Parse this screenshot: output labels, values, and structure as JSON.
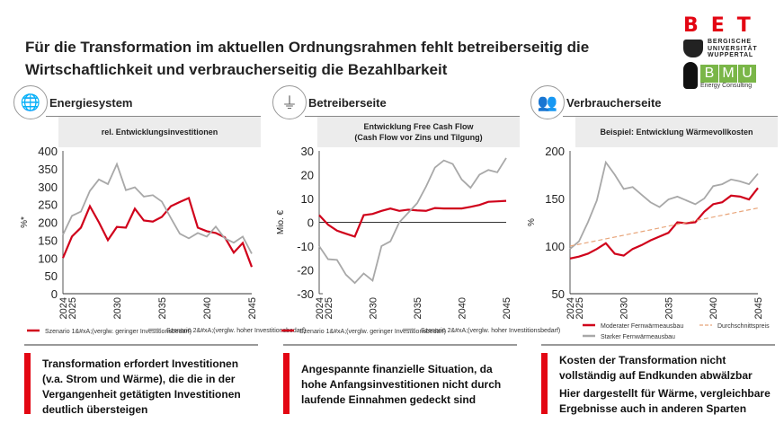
{
  "title": "Für die Transformation im aktuellen Ordnungsrahmen fehlt betreiberseitig die Wirtschaftlichkeit und verbraucherseitig die Bezahlbarkeit",
  "logos": {
    "bet": "BET",
    "university": [
      "BERGISCHE",
      "UNIVERSITÄT",
      "WUPPERTAL"
    ],
    "bmu": "BMU",
    "bmu_sub": "Energy Consulting"
  },
  "colors": {
    "red": "#d0021b",
    "gray": "#a8a8a8",
    "dashed": "#e8a57a",
    "accent": "#e30613"
  },
  "panels": [
    {
      "icon": "globe-cycle-icon",
      "heading": "Energiesystem",
      "subtitle": [
        "rel. Entwicklungsinvestitionen"
      ],
      "message": [
        "Transformation erfordert Investitionen (v.a. Strom und Wärme), die die in der Vergangenheit getätigten Investitionen deutlich übersteigen"
      ]
    },
    {
      "icon": "power-pylon-icon",
      "heading": "Betreiberseite",
      "subtitle": [
        "Entwicklung Free Cash Flow",
        "(Cash Flow vor Zins und Tilgung)"
      ],
      "message": [
        "Angespannte finanzielle Situation, da hohe Anfangsinvestitionen nicht durch laufende Einnahmen gedeckt sind"
      ]
    },
    {
      "icon": "users-icon",
      "heading": "Verbraucherseite",
      "subtitle": [
        "Beispiel: Entwicklung Wärmevollkosten"
      ],
      "message": [
        "Kosten der Transformation nicht vollständig auf Endkunden abwälzbar",
        "Hier dargestellt für Wärme, vergleichbare Ergebnisse auch in anderen Sparten"
      ]
    }
  ],
  "chart_data": [
    {
      "type": "line",
      "ylabel": "%*",
      "ylim": [
        0,
        400
      ],
      "yticks": [
        "0",
        "50",
        "100",
        "150",
        "200",
        "250",
        "300",
        "350",
        "400"
      ],
      "x": [
        2024,
        2025,
        2026,
        2027,
        2028,
        2029,
        2030,
        2031,
        2032,
        2033,
        2034,
        2035,
        2036,
        2037,
        2038,
        2039,
        2040,
        2041,
        2042,
        2043,
        2044,
        2045
      ],
      "xticks": [
        "2024",
        "2025",
        "2030",
        "2035",
        "2040",
        "2045"
      ],
      "series": [
        {
          "name": "Szenario 1&#xA;(verglw. geringer Investitionsbedarf)",
          "color": "red",
          "values": [
            100,
            160,
            185,
            245,
            200,
            150,
            187,
            185,
            238,
            205,
            202,
            215,
            245,
            257,
            268,
            185,
            175,
            170,
            158,
            115,
            142,
            75
          ]
        },
        {
          "name": "Szenario 2&#xA;(verglw. hoher Investitionsbedarf)",
          "color": "gray",
          "values": [
            165,
            218,
            230,
            288,
            320,
            307,
            363,
            290,
            298,
            272,
            276,
            258,
            212,
            168,
            155,
            170,
            160,
            188,
            155,
            143,
            160,
            112
          ]
        }
      ],
      "legend_text": [
        "Szenario 1&#xA;(verglw. geringer Investitionsbedarf)",
        "Szenario 2&#xA;(verglw. hoher Investitionsbedarf)"
      ]
    },
    {
      "type": "line",
      "ylabel": "Mio. €",
      "ylim": [
        -30,
        30
      ],
      "yticks": [
        "-30",
        "-20",
        "-10",
        "0",
        "10",
        "20",
        "30"
      ],
      "zero_line": true,
      "x": [
        2024,
        2025,
        2026,
        2027,
        2028,
        2029,
        2030,
        2031,
        2032,
        2033,
        2034,
        2035,
        2036,
        2037,
        2038,
        2039,
        2040,
        2041,
        2042,
        2043,
        2044,
        2045
      ],
      "xticks": [
        "2024",
        "2025",
        "2030",
        "2035",
        "2040",
        "2045"
      ],
      "series": [
        {
          "name": "Szenario 1&#xA;(verglw. geringer Investitionsbedarf)",
          "color": "red",
          "values": [
            3,
            -1,
            -3.5,
            -4.8,
            -6,
            3,
            3.5,
            4.8,
            5.8,
            4.8,
            5.3,
            5,
            4.8,
            6,
            5.8,
            5.8,
            5.8,
            6.5,
            7.3,
            8.6,
            8.8,
            9
          ]
        },
        {
          "name": "Szenario 2&#xA;(verglw. hoher Investitionsbedarf)",
          "color": "gray",
          "values": [
            -10,
            -15.5,
            -15.8,
            -22,
            -25.5,
            -21.5,
            -24.5,
            -10,
            -8,
            0,
            4,
            8,
            15,
            23,
            26,
            24.5,
            18,
            14.5,
            20,
            22,
            21,
            27
          ]
        }
      ],
      "legend_text": [
        "Szenario 1&#xA;(verglw. geringer Investitionsbedarf)",
        "Szenario 2&#xA;(verglw. hoher Investitionsbedarf)"
      ]
    },
    {
      "type": "line",
      "ylabel": "%",
      "ylim": [
        50,
        200
      ],
      "yticks": [
        "50",
        "100",
        "150",
        "200"
      ],
      "x": [
        2024,
        2025,
        2026,
        2027,
        2028,
        2029,
        2030,
        2031,
        2032,
        2033,
        2034,
        2035,
        2036,
        2037,
        2038,
        2039,
        2040,
        2041,
        2042,
        2043,
        2044,
        2045
      ],
      "xticks": [
        "2024",
        "2025",
        "2030",
        "2035",
        "2040",
        "2045"
      ],
      "series": [
        {
          "name": "Moderater Fernwärmeausbau",
          "color": "red",
          "values": [
            87,
            89,
            92,
            97,
            103,
            92,
            90,
            97,
            101,
            106,
            110,
            114,
            125,
            124,
            125,
            136,
            144,
            146,
            153,
            152,
            149,
            161
          ]
        },
        {
          "name": "Starker Fernwärmeausbau",
          "color": "gray",
          "values": [
            97,
            105,
            125,
            148,
            188,
            175,
            160,
            162,
            154,
            146,
            141,
            149,
            152,
            148,
            144,
            150,
            163,
            165,
            170,
            168,
            165,
            176
          ]
        },
        {
          "name": "Durchschnittspreis",
          "color": "dashed",
          "dashed": true,
          "values": [
            100,
            101.9,
            103.8,
            105.7,
            107.6,
            109.5,
            111.4,
            113.3,
            115.2,
            117.1,
            119,
            121,
            122.9,
            124.8,
            126.7,
            128.6,
            130.5,
            132.4,
            134.3,
            136.2,
            138.1,
            140
          ]
        }
      ],
      "legend_text": [
        "Moderater Fernwärmeausbau",
        "Durchschnittspreis",
        "Starker Fernwärmeausbau"
      ]
    }
  ]
}
